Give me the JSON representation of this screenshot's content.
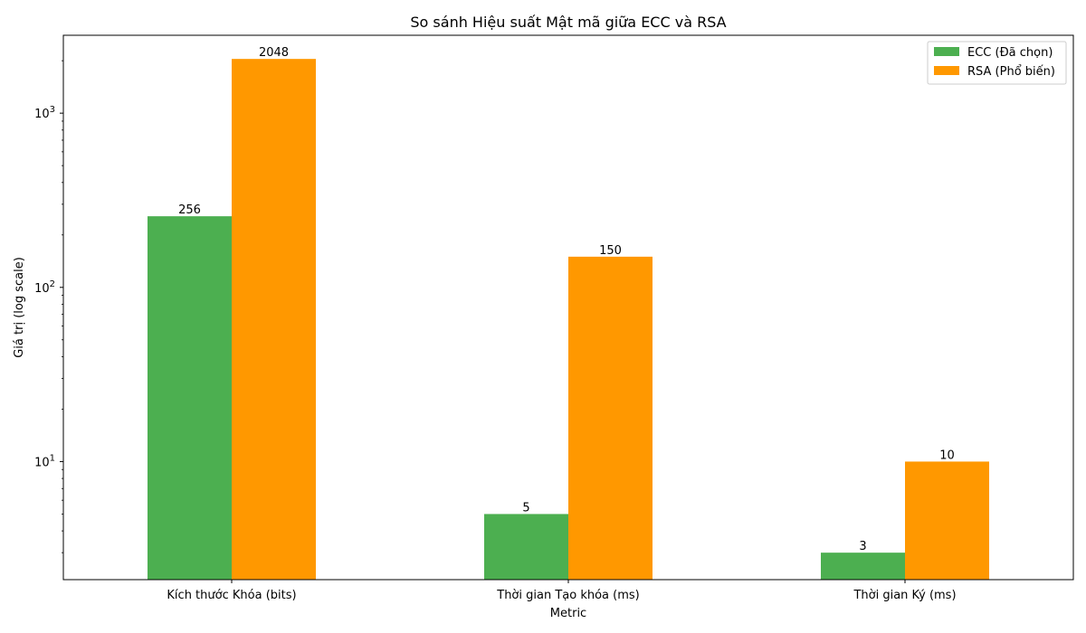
{
  "chart_data": {
    "type": "bar",
    "title": "So sánh Hiệu suất Mật mã giữa ECC và RSA",
    "xlabel": "Metric",
    "ylabel": "Giá trị (log scale)",
    "yscale": "log",
    "ylim": [
      2.1,
      2800
    ],
    "yticks": [
      {
        "value": 10,
        "base": "10",
        "exp": "1"
      },
      {
        "value": 100,
        "base": "10",
        "exp": "2"
      },
      {
        "value": 1000,
        "base": "10",
        "exp": "3"
      }
    ],
    "categories": [
      "Kích thước Khóa (bits)",
      "Thời gian Tạo khóa (ms)",
      "Thời gian Ký (ms)"
    ],
    "series": [
      {
        "name": "ECC (Đã chọn)",
        "color": "#4caf50",
        "values": [
          256,
          5,
          3
        ],
        "labels": [
          "256",
          "5",
          "3"
        ]
      },
      {
        "name": "RSA (Phổ biến)",
        "color": "#ff9800",
        "values": [
          2048,
          150,
          10
        ],
        "labels": [
          "2048",
          "150",
          "10"
        ]
      }
    ],
    "legend": "top-right",
    "grid": false
  }
}
